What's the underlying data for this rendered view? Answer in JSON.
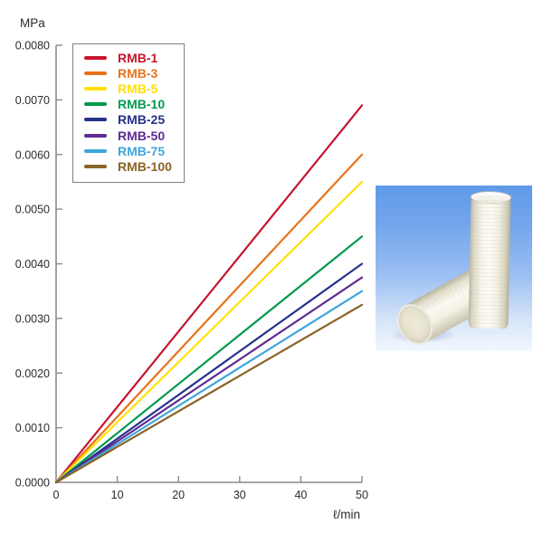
{
  "page": {
    "background": "#ffffff"
  },
  "chart_data": {
    "type": "line",
    "title": "",
    "ylabel": "MPa",
    "xlabel": "ℓ/min",
    "xlim": [
      0,
      50
    ],
    "ylim": [
      0,
      0.008
    ],
    "grid": false,
    "legend_position": "top-left-inside",
    "axis_color": "#8a8a8a",
    "label_color": "#2b2b2b",
    "x_ticks": [
      0,
      10,
      20,
      30,
      40,
      50
    ],
    "y_tick_labels": [
      "0.0000",
      "0.0010",
      "0.0020",
      "0.0030",
      "0.0040",
      "0.0050",
      "0.0060",
      "0.0070",
      "0.0080"
    ],
    "series": [
      {
        "name": "RMB-1",
        "color": "#c8142e",
        "points": [
          [
            0,
            0
          ],
          [
            50,
            0.0069
          ]
        ]
      },
      {
        "name": "RMB-3",
        "color": "#e8731a",
        "points": [
          [
            0,
            0
          ],
          [
            50,
            0.006
          ]
        ]
      },
      {
        "name": "RMB-5",
        "color": "#ffe100",
        "points": [
          [
            0,
            0
          ],
          [
            50,
            0.0055
          ]
        ]
      },
      {
        "name": "RMB-10",
        "color": "#009a4e",
        "points": [
          [
            0,
            0
          ],
          [
            50,
            0.0045
          ]
        ]
      },
      {
        "name": "RMB-25",
        "color": "#26328c",
        "points": [
          [
            0,
            0
          ],
          [
            50,
            0.004
          ]
        ]
      },
      {
        "name": "RMB-50",
        "color": "#5f2b91",
        "points": [
          [
            0,
            0
          ],
          [
            50,
            0.00375
          ]
        ]
      },
      {
        "name": "RMB-75",
        "color": "#3fa5dc",
        "points": [
          [
            0,
            0
          ],
          [
            50,
            0.0035
          ]
        ]
      },
      {
        "name": "RMB-100",
        "color": "#8a6326",
        "points": [
          [
            0,
            0
          ],
          [
            50,
            0.00325
          ]
        ]
      }
    ]
  },
  "photo": {
    "alt": "Two white melt-blown filter cartridges on a blue gradient background",
    "background_top": "#5f9ae8",
    "background_bottom": "#f2f8fe",
    "cartridge_color": "#f7f5ea"
  }
}
